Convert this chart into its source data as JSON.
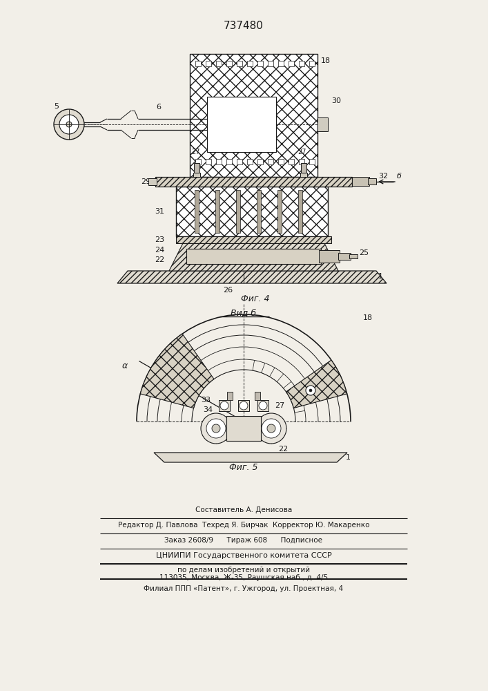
{
  "title": "737480",
  "fig4_label": "Фиг. 4",
  "vidb_label": "Вид б",
  "fig5_label": "Фиг. 5",
  "bg_color": "#f2efe8",
  "line_color": "#1a1a1a",
  "footer_lines": [
    "Составитель А. Денисова",
    "Редактор Д. Павлова  Техред Я. Бирчак  Корректор Ю. Макаренко",
    "Заказ 2608/9      Тираж 608      Подписное",
    "ЦНИИПИ Государственного комитета СССР",
    "по делам изобретений и открытий",
    "113035, Москва, Ж-35, Раушская наб., д. 4/5",
    "Филиал ППП «Патент», г. Ужгород, ул. Проектная, 4"
  ]
}
